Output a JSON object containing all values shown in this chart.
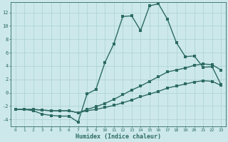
{
  "xlabel": "Humidex (Indice chaleur)",
  "ylabel": "",
  "bg_color": "#cce8eb",
  "grid_color": "#b0d4d8",
  "line_color": "#2d6b62",
  "xlim": [
    -0.5,
    23.5
  ],
  "ylim": [
    -5.0,
    13.5
  ],
  "yticks": [
    -4,
    -2,
    0,
    2,
    4,
    6,
    8,
    10,
    12
  ],
  "xticks": [
    0,
    1,
    2,
    3,
    4,
    5,
    6,
    7,
    8,
    9,
    10,
    11,
    12,
    13,
    14,
    15,
    16,
    17,
    18,
    19,
    20,
    21,
    22,
    23
  ],
  "line1_x": [
    0,
    1,
    2,
    3,
    4,
    5,
    6,
    7,
    8,
    9,
    10,
    11,
    12,
    13,
    14,
    15,
    16,
    17,
    18,
    19,
    20,
    21,
    22,
    23
  ],
  "line1_y": [
    -2.5,
    -2.5,
    -2.7,
    -3.2,
    -3.4,
    -3.5,
    -3.5,
    -4.4,
    -0.2,
    0.5,
    4.5,
    7.3,
    11.4,
    11.5,
    9.3,
    13.0,
    13.3,
    11.0,
    7.5,
    5.4,
    5.5,
    3.8,
    3.9,
    1.2
  ],
  "line2_x": [
    0,
    1,
    2,
    3,
    4,
    5,
    6,
    7,
    8,
    9,
    10,
    11,
    12,
    13,
    14,
    15,
    16,
    17,
    18,
    19,
    20,
    21,
    22,
    23
  ],
  "line2_y": [
    -2.5,
    -2.5,
    -2.5,
    -2.6,
    -2.7,
    -2.7,
    -2.7,
    -3.0,
    -2.5,
    -2.1,
    -1.6,
    -1.0,
    -0.3,
    0.4,
    1.0,
    1.7,
    2.4,
    3.1,
    3.4,
    3.7,
    4.1,
    4.3,
    4.2,
    3.4
  ],
  "line3_x": [
    0,
    1,
    2,
    3,
    4,
    5,
    6,
    7,
    8,
    9,
    10,
    11,
    12,
    13,
    14,
    15,
    16,
    17,
    18,
    19,
    20,
    21,
    22,
    23
  ],
  "line3_y": [
    -2.5,
    -2.5,
    -2.5,
    -2.6,
    -2.7,
    -2.7,
    -2.7,
    -3.0,
    -2.7,
    -2.5,
    -2.2,
    -1.9,
    -1.5,
    -1.1,
    -0.6,
    -0.2,
    0.2,
    0.7,
    1.0,
    1.3,
    1.6,
    1.8,
    1.7,
    1.1
  ]
}
